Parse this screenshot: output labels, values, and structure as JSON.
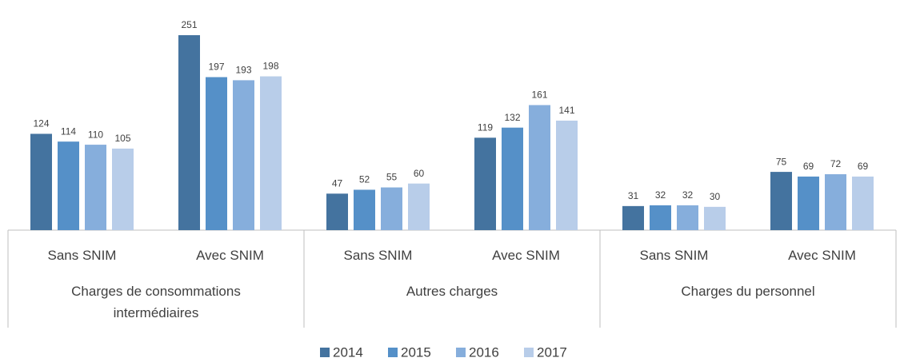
{
  "chart_data": {
    "type": "bar",
    "groups": [
      "Charges de consommations intermédiaires",
      "Autres charges",
      "Charges du personnel"
    ],
    "categories": [
      "Sans SNIM",
      "Avec SNIM",
      "Sans SNIM",
      "Avec SNIM",
      "Sans SNIM",
      "Avec SNIM"
    ],
    "series": [
      {
        "name": "2014",
        "color": "#44739f",
        "values": [
          124,
          251,
          47,
          119,
          31,
          75
        ]
      },
      {
        "name": "2015",
        "color": "#5590c8",
        "values": [
          114,
          197,
          52,
          132,
          32,
          69
        ]
      },
      {
        "name": "2016",
        "color": "#86aedc",
        "values": [
          110,
          193,
          55,
          161,
          32,
          72
        ]
      },
      {
        "name": "2017",
        "color": "#b8cde9",
        "values": [
          105,
          198,
          60,
          141,
          30,
          69
        ]
      }
    ],
    "legend": "bottom"
  }
}
